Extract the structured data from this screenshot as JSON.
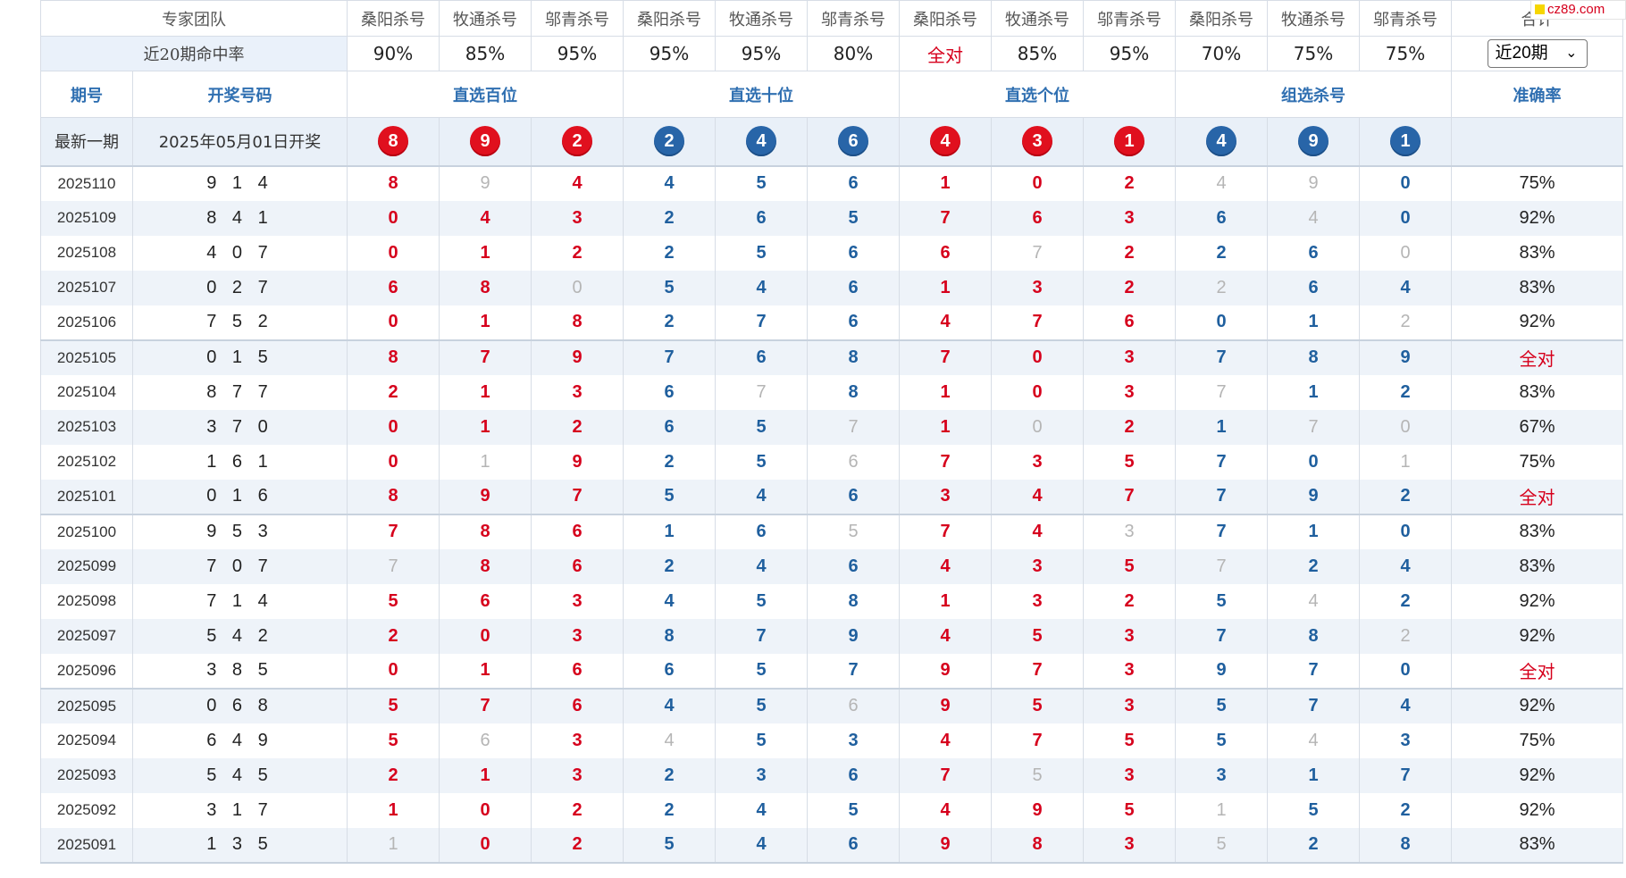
{
  "header": {
    "team_label": "专家团队",
    "experts": [
      "桑阳杀号",
      "牧通杀号",
      "邬青杀号",
      "桑阳杀号",
      "牧通杀号",
      "邬青杀号",
      "桑阳杀号",
      "牧通杀号",
      "邬青杀号",
      "桑阳杀号",
      "牧通杀号",
      "邬青杀号"
    ],
    "last_col_label": "合计"
  },
  "hit_rate": {
    "label": "近20期命中率",
    "values": [
      "90%",
      "85%",
      "95%",
      "95%",
      "95%",
      "80%",
      "全对",
      "85%",
      "95%",
      "70%",
      "75%",
      "75%"
    ],
    "select_value": "近20期"
  },
  "section": {
    "issue": "期号",
    "draw": "开奖号码",
    "groups": [
      "直选百位",
      "直选十位",
      "直选个位",
      "组选杀号"
    ],
    "accuracy": "准确率"
  },
  "latest": {
    "label": "最新一期",
    "date": "2025年05月01日开奖",
    "balls": [
      {
        "v": "8",
        "c": "red"
      },
      {
        "v": "9",
        "c": "red"
      },
      {
        "v": "2",
        "c": "red"
      },
      {
        "v": "2",
        "c": "blue"
      },
      {
        "v": "4",
        "c": "blue"
      },
      {
        "v": "6",
        "c": "blue"
      },
      {
        "v": "4",
        "c": "red"
      },
      {
        "v": "3",
        "c": "red"
      },
      {
        "v": "1",
        "c": "red"
      },
      {
        "v": "4",
        "c": "blue"
      },
      {
        "v": "9",
        "c": "blue"
      },
      {
        "v": "1",
        "c": "blue"
      }
    ]
  },
  "rows": [
    {
      "issue": "2025110",
      "nums": "9 1 4",
      "k": [
        "8",
        "9g",
        "4",
        "4",
        "5",
        "6",
        "1",
        "0",
        "2",
        "4g",
        "9g",
        "0"
      ],
      "acc": "75%"
    },
    {
      "issue": "2025109",
      "nums": "8 4 1",
      "k": [
        "0",
        "4",
        "3",
        "2",
        "6",
        "5",
        "7",
        "6",
        "3",
        "6",
        "4g",
        "0"
      ],
      "acc": "92%"
    },
    {
      "issue": "2025108",
      "nums": "4 0 7",
      "k": [
        "0",
        "1",
        "2",
        "2",
        "5",
        "6",
        "6",
        "7g",
        "2",
        "2",
        "6",
        "0g"
      ],
      "acc": "83%"
    },
    {
      "issue": "2025107",
      "nums": "0 2 7",
      "k": [
        "6",
        "8",
        "0g",
        "5",
        "4",
        "6",
        "1",
        "3",
        "2",
        "2g",
        "6",
        "4"
      ],
      "acc": "83%"
    },
    {
      "issue": "2025106",
      "nums": "7 5 2",
      "k": [
        "0",
        "1",
        "8",
        "2",
        "7",
        "6",
        "4",
        "7",
        "6",
        "0",
        "1",
        "2g"
      ],
      "acc": "92%"
    },
    {
      "issue": "2025105",
      "nums": "0 1 5",
      "k": [
        "8",
        "7",
        "9",
        "7",
        "6",
        "8",
        "7",
        "0",
        "3",
        "7",
        "8",
        "9"
      ],
      "acc": "全对"
    },
    {
      "issue": "2025104",
      "nums": "8 7 7",
      "k": [
        "2",
        "1",
        "3",
        "6",
        "7g",
        "8",
        "1",
        "0",
        "3",
        "7g",
        "1",
        "2"
      ],
      "acc": "83%"
    },
    {
      "issue": "2025103",
      "nums": "3 7 0",
      "k": [
        "0",
        "1",
        "2",
        "6",
        "5",
        "7g",
        "1",
        "0g",
        "2",
        "1",
        "7g",
        "0g"
      ],
      "acc": "67%"
    },
    {
      "issue": "2025102",
      "nums": "1 6 1",
      "k": [
        "0",
        "1g",
        "9",
        "2",
        "5",
        "6g",
        "7",
        "3",
        "5",
        "7",
        "0",
        "1g"
      ],
      "acc": "75%"
    },
    {
      "issue": "2025101",
      "nums": "0 1 6",
      "k": [
        "8",
        "9",
        "7",
        "5",
        "4",
        "6",
        "3",
        "4",
        "7",
        "7",
        "9",
        "2"
      ],
      "acc": "全对"
    },
    {
      "issue": "2025100",
      "nums": "9 5 3",
      "k": [
        "7",
        "8",
        "6",
        "1",
        "6",
        "5g",
        "7",
        "4",
        "3g",
        "7",
        "1",
        "0"
      ],
      "acc": "83%"
    },
    {
      "issue": "2025099",
      "nums": "7 0 7",
      "k": [
        "7g",
        "8",
        "6",
        "2",
        "4",
        "6",
        "4",
        "3",
        "5",
        "7g",
        "2",
        "4"
      ],
      "acc": "83%"
    },
    {
      "issue": "2025098",
      "nums": "7 1 4",
      "k": [
        "5",
        "6",
        "3",
        "4",
        "5",
        "8",
        "1",
        "3",
        "2",
        "5",
        "4g",
        "2"
      ],
      "acc": "92%"
    },
    {
      "issue": "2025097",
      "nums": "5 4 2",
      "k": [
        "2",
        "0",
        "3",
        "8",
        "7",
        "9",
        "4",
        "5",
        "3",
        "7",
        "8",
        "2g"
      ],
      "acc": "92%"
    },
    {
      "issue": "2025096",
      "nums": "3 8 5",
      "k": [
        "0",
        "1",
        "6",
        "6",
        "5",
        "7",
        "9",
        "7",
        "3",
        "9",
        "7",
        "0"
      ],
      "acc": "全对"
    },
    {
      "issue": "2025095",
      "nums": "0 6 8",
      "k": [
        "5",
        "7",
        "6",
        "4",
        "5",
        "6g",
        "9",
        "5",
        "3",
        "5",
        "7",
        "4"
      ],
      "acc": "92%"
    },
    {
      "issue": "2025094",
      "nums": "6 4 9",
      "k": [
        "5",
        "6g",
        "3",
        "4g",
        "5",
        "3",
        "4",
        "7",
        "5",
        "5",
        "4g",
        "3"
      ],
      "acc": "75%"
    },
    {
      "issue": "2025093",
      "nums": "5 4 5",
      "k": [
        "2",
        "1",
        "3",
        "2",
        "3",
        "6",
        "7",
        "5g",
        "3",
        "3",
        "1",
        "7"
      ],
      "acc": "92%"
    },
    {
      "issue": "2025092",
      "nums": "3 1 7",
      "k": [
        "1",
        "0",
        "2",
        "2",
        "4",
        "5",
        "4",
        "9",
        "5",
        "1g",
        "5",
        "2"
      ],
      "acc": "92%"
    },
    {
      "issue": "2025091",
      "nums": "1 3 5",
      "k": [
        "1g",
        "0",
        "2",
        "5",
        "4",
        "6",
        "9",
        "8",
        "3",
        "5g",
        "2",
        "8"
      ],
      "acc": "83%"
    }
  ],
  "colors": {
    "red": "#d6001c",
    "blue": "#1f5f9e",
    "gray": "#b5b5b5",
    "header_blue": "#2f6fb1"
  },
  "logo": {
    "text": "cz89.com"
  }
}
